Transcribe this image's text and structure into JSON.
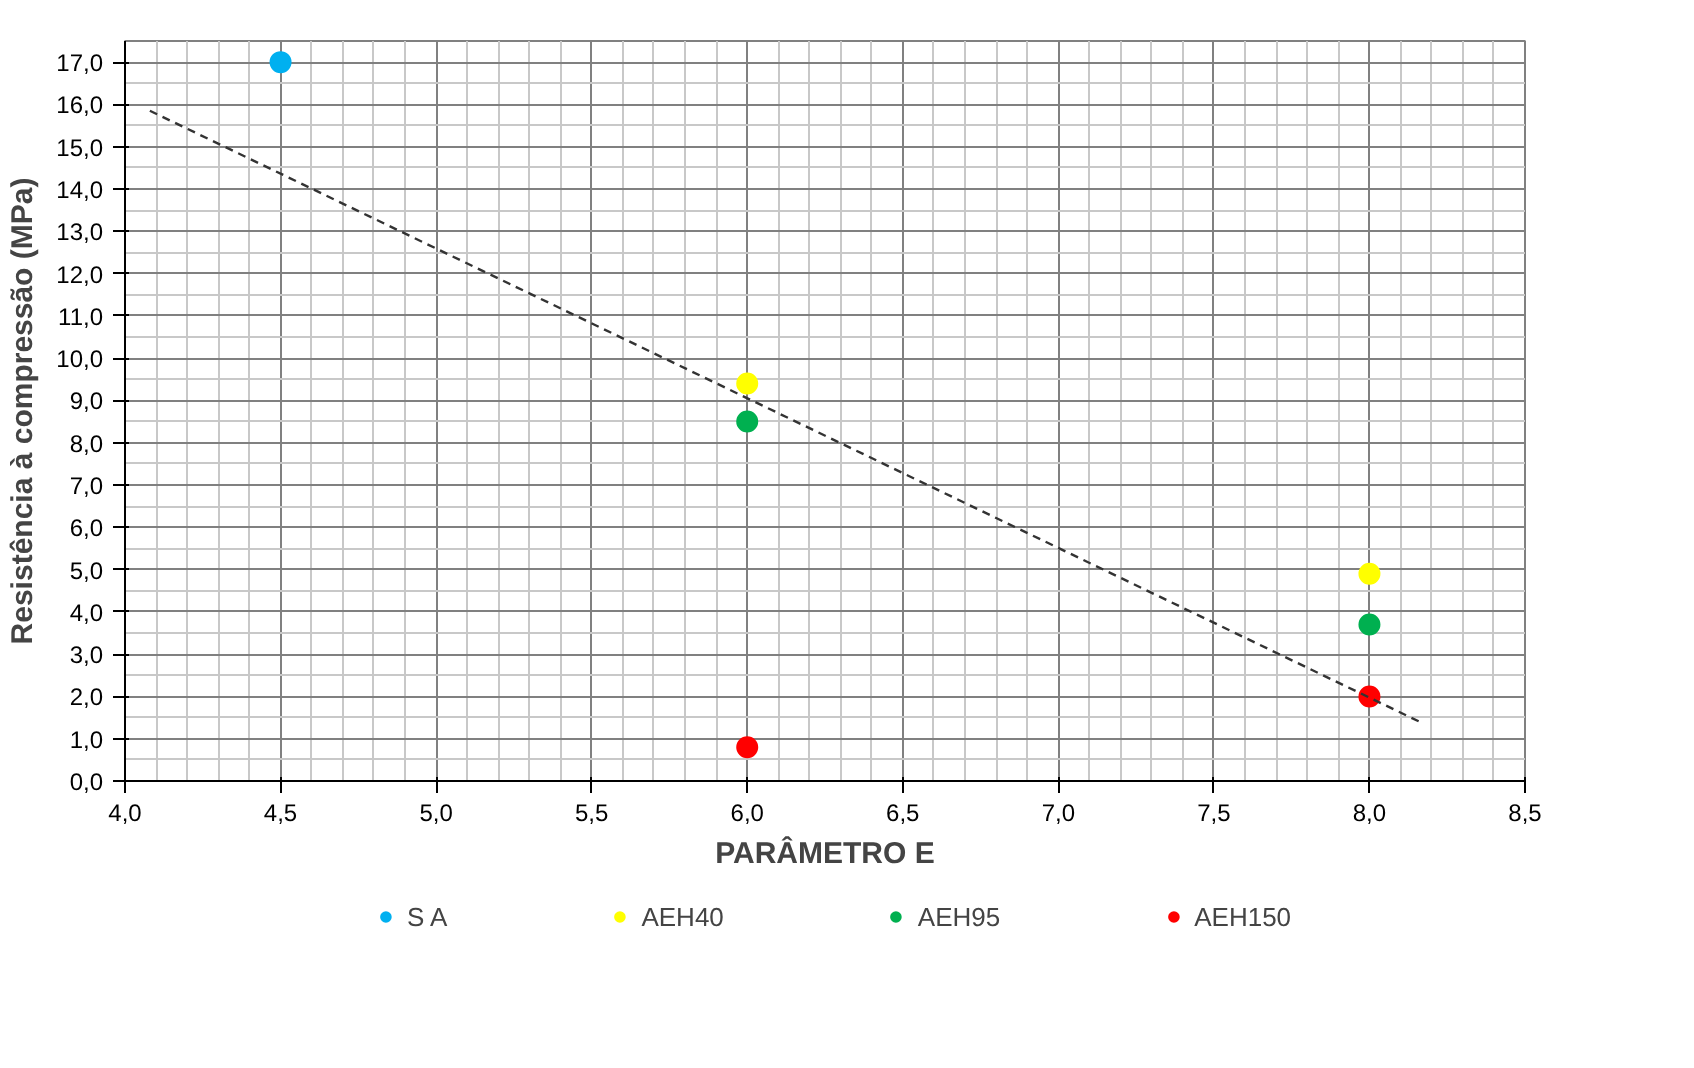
{
  "chart_data": {
    "type": "scatter",
    "xlabel": "PARÂMETRO E",
    "ylabel": "Resistência à compressão (MPa)",
    "xlim": [
      4.0,
      8.5
    ],
    "ylim": [
      0,
      17.5
    ],
    "xticks": [
      {
        "value": 4.0,
        "label": "4,0"
      },
      {
        "value": 4.5,
        "label": "4,5"
      },
      {
        "value": 5.0,
        "label": "5,0"
      },
      {
        "value": 5.5,
        "label": "5,5"
      },
      {
        "value": 6.0,
        "label": "6,0"
      },
      {
        "value": 6.5,
        "label": "6,5"
      },
      {
        "value": 7.0,
        "label": "7,0"
      },
      {
        "value": 7.5,
        "label": "7,5"
      },
      {
        "value": 8.0,
        "label": "8,0"
      },
      {
        "value": 8.5,
        "label": "8,5"
      }
    ],
    "yticks": [
      {
        "value": 0,
        "label": "0,0"
      },
      {
        "value": 1,
        "label": "1,0"
      },
      {
        "value": 2,
        "label": "2,0"
      },
      {
        "value": 3,
        "label": "3,0"
      },
      {
        "value": 4,
        "label": "4,0"
      },
      {
        "value": 5,
        "label": "5,0"
      },
      {
        "value": 6,
        "label": "6,0"
      },
      {
        "value": 7,
        "label": "7,0"
      },
      {
        "value": 8,
        "label": "8,0"
      },
      {
        "value": 9,
        "label": "9,0"
      },
      {
        "value": 10,
        "label": "10,0"
      },
      {
        "value": 11,
        "label": "11,0"
      },
      {
        "value": 12,
        "label": "12,0"
      },
      {
        "value": 13,
        "label": "13,0"
      },
      {
        "value": 14,
        "label": "14,0"
      },
      {
        "value": 15,
        "label": "15,0"
      },
      {
        "value": 16,
        "label": "16,0"
      },
      {
        "value": 17,
        "label": "17,0"
      }
    ],
    "grid": true,
    "legend": "bottom",
    "marker": "circle",
    "series": [
      {
        "name": "S A",
        "color": "#00b0f0",
        "x": [
          4.5
        ],
        "values": [
          17.0
        ]
      },
      {
        "name": "AEH40",
        "color": "#ffff00",
        "x": [
          6.0,
          8.0
        ],
        "values": [
          9.4,
          4.9
        ]
      },
      {
        "name": "AEH95",
        "color": "#00b050",
        "x": [
          6.0,
          8.0
        ],
        "values": [
          8.5,
          3.7
        ]
      },
      {
        "name": "AEH150",
        "color": "#ff0000",
        "x": [
          6.0,
          8.0
        ],
        "values": [
          0.8,
          2.0
        ]
      },
      {
        "type": "line",
        "color": "#333333",
        "line_style": "dashed",
        "marker": "none",
        "x": [
          4.08,
          8.17
        ],
        "values": [
          15.85,
          1.37
        ]
      }
    ]
  }
}
